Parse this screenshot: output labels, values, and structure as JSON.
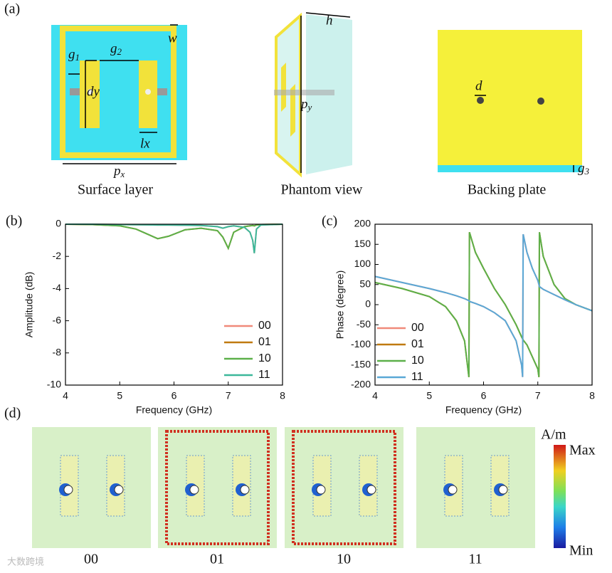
{
  "panels": {
    "a": "(a)",
    "b": "(b)",
    "c": "(c)",
    "d": "(d)"
  },
  "surface_layer": {
    "caption": "Surface layer",
    "labels": {
      "w": "w",
      "dy": "dy",
      "lx": "lx",
      "g1": {
        "base": "g",
        "sub": "1"
      },
      "g2": {
        "base": "g",
        "sub": "2"
      },
      "px": {
        "base": "p",
        "sub": "x"
      }
    }
  },
  "phantom_view": {
    "caption": "Phantom view",
    "labels": {
      "h": "h",
      "py": {
        "base": "p",
        "sub": "y"
      }
    }
  },
  "backing_plate": {
    "caption": "Backing plate",
    "labels": {
      "d": "d",
      "g3": {
        "base": "g",
        "sub": "3"
      }
    }
  },
  "field_maps": {
    "captions": [
      "00",
      "01",
      "10",
      "11"
    ],
    "unit": "A/m",
    "max": "Max",
    "min": "Min"
  },
  "watermark": "大数跨境",
  "chart_data": [
    {
      "type": "line",
      "xlabel": "Frequency (GHz)",
      "ylabel": "Amplitude (dB)",
      "x": [
        4,
        4.5,
        5,
        5.3,
        5.5,
        5.7,
        5.9,
        6.2,
        6.5,
        6.8,
        6.9,
        7.0,
        7.1,
        7.3,
        7.4,
        7.45,
        7.48,
        7.52,
        7.6,
        8
      ],
      "series": [
        {
          "name": "00",
          "color": "#f08a7a",
          "values": [
            0,
            0,
            -0.02,
            -0.03,
            -0.04,
            -0.05,
            -0.05,
            -0.06,
            -0.08,
            -0.15,
            -0.25,
            -0.15,
            -0.1,
            -0.2,
            -0.5,
            -1.0,
            -1.8,
            -0.3,
            -0.05,
            0
          ]
        },
        {
          "name": "01",
          "color": "#c07a10",
          "values": [
            0,
            -0.02,
            -0.1,
            -0.3,
            -0.6,
            -0.9,
            -0.75,
            -0.35,
            -0.25,
            -0.4,
            -0.8,
            -1.5,
            -0.5,
            -0.15,
            -0.1,
            -0.08,
            -0.1,
            -0.05,
            -0.02,
            0
          ]
        },
        {
          "name": "10",
          "color": "#5cb04a",
          "values": [
            0,
            -0.02,
            -0.1,
            -0.3,
            -0.6,
            -0.9,
            -0.75,
            -0.35,
            -0.25,
            -0.4,
            -0.8,
            -1.5,
            -0.5,
            -0.15,
            -0.1,
            -0.08,
            -0.1,
            -0.05,
            -0.02,
            0
          ]
        },
        {
          "name": "11",
          "color": "#3cb89a",
          "values": [
            0,
            0,
            -0.02,
            -0.03,
            -0.04,
            -0.05,
            -0.05,
            -0.06,
            -0.08,
            -0.15,
            -0.25,
            -0.15,
            -0.1,
            -0.2,
            -0.5,
            -1.0,
            -1.8,
            -0.3,
            -0.05,
            0
          ]
        }
      ],
      "xlim": [
        4,
        8
      ],
      "xticks": [
        4,
        5,
        6,
        7,
        8
      ],
      "ylim": [
        -10,
        0
      ],
      "yticks": [
        0,
        -2,
        -4,
        -6,
        -8,
        -10
      ],
      "legend": "lower-right"
    },
    {
      "type": "line",
      "xlabel": "Frequency (GHz)",
      "ylabel": "Phase (degree)",
      "x": [
        4,
        4.5,
        5,
        5.3,
        5.5,
        5.65,
        5.73,
        5.74,
        5.85,
        6,
        6.2,
        6.4,
        6.6,
        6.7,
        6.72,
        6.73,
        6.8,
        6.9,
        7.0,
        7.02,
        7.03,
        7.1,
        7.3,
        7.5,
        7.7,
        8
      ],
      "series": [
        {
          "name": "00",
          "color": "#f08a7a",
          "values": [
            70,
            55,
            40,
            30,
            22,
            15,
            10,
            8,
            3,
            -5,
            -20,
            -40,
            -90,
            -150,
            -180,
            175,
            130,
            90,
            60,
            50,
            45,
            38,
            25,
            12,
            0,
            -15
          ]
        },
        {
          "name": "01",
          "color": "#c07a10",
          "values": [
            55,
            40,
            20,
            -5,
            -40,
            -90,
            -180,
            180,
            130,
            90,
            40,
            0,
            -50,
            -80,
            -85,
            -88,
            -100,
            -130,
            -160,
            -180,
            180,
            120,
            50,
            15,
            0,
            -15
          ]
        },
        {
          "name": "10",
          "color": "#5cb04a",
          "values": [
            55,
            40,
            20,
            -5,
            -40,
            -90,
            -180,
            180,
            130,
            90,
            40,
            0,
            -50,
            -80,
            -85,
            -88,
            -100,
            -130,
            -160,
            -180,
            180,
            120,
            50,
            15,
            0,
            -15
          ]
        },
        {
          "name": "11",
          "color": "#5aa8d6",
          "values": [
            70,
            55,
            40,
            30,
            22,
            15,
            10,
            8,
            3,
            -5,
            -20,
            -40,
            -90,
            -150,
            -180,
            175,
            130,
            90,
            60,
            50,
            45,
            38,
            25,
            12,
            0,
            -15
          ]
        }
      ],
      "xlim": [
        4,
        8
      ],
      "xticks": [
        4,
        5,
        6,
        7,
        8
      ],
      "ylim": [
        -200,
        200
      ],
      "yticks": [
        -200,
        -150,
        -100,
        -50,
        0,
        50,
        100,
        150,
        200
      ],
      "legend": "lower-left"
    }
  ]
}
